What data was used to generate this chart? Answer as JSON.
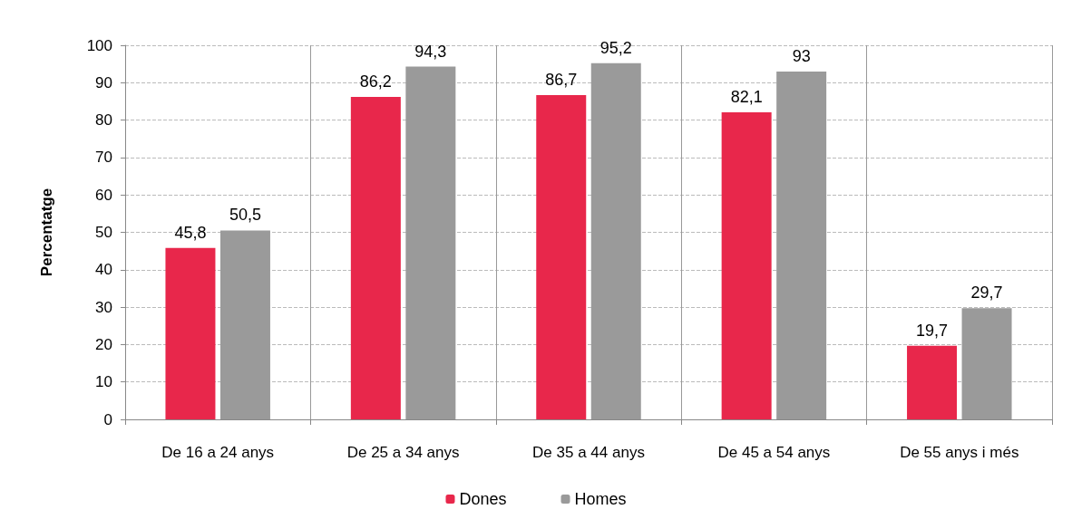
{
  "chart_data": {
    "type": "bar",
    "ylabel": "Percentatge",
    "categories": [
      "De 16 a 24 anys",
      "De 25 a 34 anys",
      "De 35 a 44 anys",
      "De 45 a 54 anys",
      "De 55 anys i més"
    ],
    "series": [
      {
        "name": "Dones",
        "color": "#e8274b",
        "values": [
          45.8,
          86.2,
          86.7,
          82.1,
          19.7
        ],
        "value_labels": [
          "45,8",
          "86,2",
          "86,7",
          "82,1",
          "19,7"
        ]
      },
      {
        "name": "Homes",
        "color": "#9a9a9a",
        "values": [
          50.5,
          94.3,
          95.2,
          93,
          29.7
        ],
        "value_labels": [
          "50,5",
          "94,3",
          "95,2",
          "93",
          "29,7"
        ]
      }
    ],
    "ylim": [
      0,
      100
    ],
    "yticks": [
      0,
      10,
      20,
      30,
      40,
      50,
      60,
      70,
      80,
      90,
      100
    ],
    "grid": true,
    "legend": "bottom"
  }
}
